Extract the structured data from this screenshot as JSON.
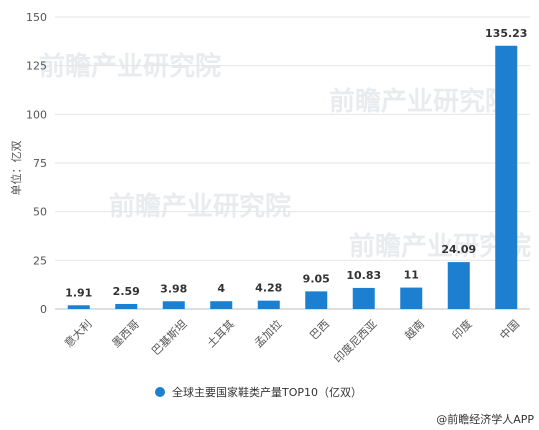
{
  "chart_data": {
    "type": "bar",
    "categories": [
      "意大利",
      "墨西哥",
      "巴基斯坦",
      "土耳其",
      "孟加拉",
      "巴西",
      "印度尼西亚",
      "越南",
      "印度",
      "中国"
    ],
    "series": [
      {
        "name": "全球主要国家鞋类产量TOP10（亿双）",
        "values": [
          1.91,
          2.59,
          3.98,
          4,
          4.28,
          9.05,
          10.83,
          11,
          24.09,
          135.23
        ]
      }
    ],
    "data_labels": [
      "1.91",
      "2.59",
      "3.98",
      "4",
      "4.28",
      "9.05",
      "10.83",
      "11",
      "24.09",
      "135.23"
    ],
    "ylabel": "单位：亿双",
    "ylim": [
      0,
      150
    ],
    "yticks": [
      0,
      25,
      50,
      75,
      100,
      125,
      150
    ],
    "grid": true,
    "legend_position": "bottom-center",
    "bar_color": "#1c7fd0"
  },
  "watermark": {
    "text": "前瞻产业研究院"
  },
  "source": {
    "text": "@前瞻经济学人APP"
  }
}
